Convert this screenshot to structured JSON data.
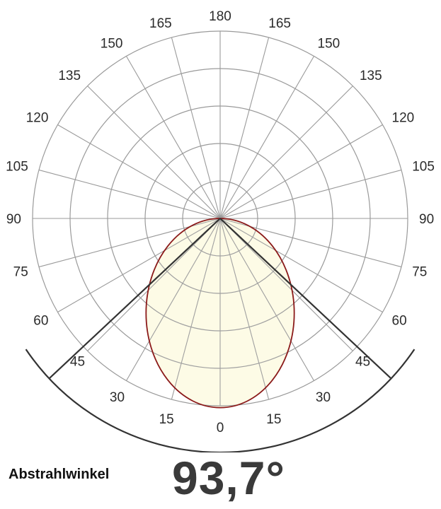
{
  "chart_data": {
    "type": "polar",
    "title": "",
    "angle_tick_labels": {
      "top": "180",
      "upper_left": [
        "165",
        "150",
        "135",
        "120",
        "105"
      ],
      "upper_right": [
        "165",
        "150",
        "135",
        "120",
        "105"
      ],
      "left_middle": "90",
      "right_middle": "90",
      "lower_left": [
        "75",
        "60",
        "45",
        "30",
        "15"
      ],
      "lower_right": [
        "75",
        "60",
        "45",
        "30",
        "15"
      ],
      "bottom": "0"
    },
    "angle_ticks_deg": [
      180,
      165,
      150,
      135,
      120,
      105,
      90,
      75,
      60,
      45,
      30,
      15,
      0
    ],
    "rings": 5,
    "grid": true,
    "series": [
      {
        "shape": "ellipse-lobe",
        "direction_deg": 0,
        "fill": "#fdfbe6",
        "stroke": "#8b1a1a"
      }
    ],
    "beam_angle_deg": 93.7,
    "beam_half_angle_deg": 46.85,
    "beam_line_color": "#333333"
  },
  "caption": {
    "label": "Abstrahlwinkel",
    "value": "93,7°",
    "value_color": "#3a3a3a"
  }
}
